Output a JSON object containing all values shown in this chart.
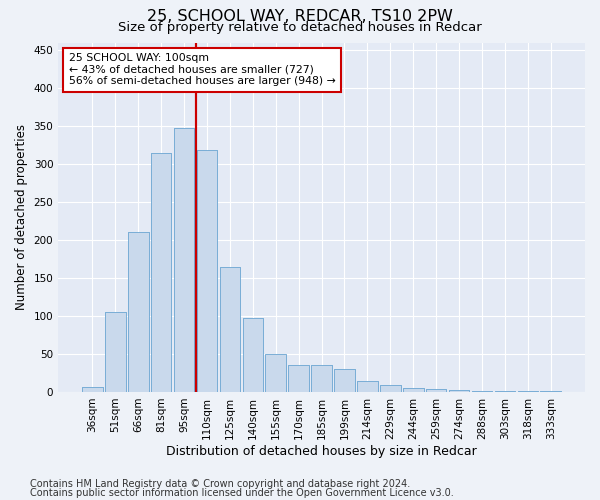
{
  "title1": "25, SCHOOL WAY, REDCAR, TS10 2PW",
  "title2": "Size of property relative to detached houses in Redcar",
  "xlabel": "Distribution of detached houses by size in Redcar",
  "ylabel": "Number of detached properties",
  "categories": [
    "36sqm",
    "51sqm",
    "66sqm",
    "81sqm",
    "95sqm",
    "110sqm",
    "125sqm",
    "140sqm",
    "155sqm",
    "170sqm",
    "185sqm",
    "199sqm",
    "214sqm",
    "229sqm",
    "244sqm",
    "259sqm",
    "274sqm",
    "288sqm",
    "303sqm",
    "318sqm",
    "333sqm"
  ],
  "values": [
    6,
    105,
    210,
    315,
    348,
    318,
    165,
    97,
    50,
    36,
    35,
    30,
    15,
    9,
    5,
    4,
    2,
    1,
    1,
    1,
    1
  ],
  "bar_color": "#c9d9ec",
  "bar_edge_color": "#7aaed6",
  "vline_x": 4.5,
  "annotation_title": "25 SCHOOL WAY: 100sqm",
  "annotation_line1": "← 43% of detached houses are smaller (727)",
  "annotation_line2": "56% of semi-detached houses are larger (948) →",
  "annotation_box_color": "#ffffff",
  "annotation_box_edge_color": "#cc0000",
  "vline_color": "#cc0000",
  "ylim": [
    0,
    460
  ],
  "yticks": [
    0,
    50,
    100,
    150,
    200,
    250,
    300,
    350,
    400,
    450
  ],
  "footer1": "Contains HM Land Registry data © Crown copyright and database right 2024.",
  "footer2": "Contains public sector information licensed under the Open Government Licence v3.0.",
  "bg_color": "#eef2f8",
  "plot_bg_color": "#e4eaf5",
  "grid_color": "#ffffff",
  "title1_fontsize": 11.5,
  "title2_fontsize": 9.5,
  "ylabel_fontsize": 8.5,
  "xlabel_fontsize": 9,
  "tick_fontsize": 7.5,
  "annot_fontsize": 7.8,
  "footer_fontsize": 7
}
